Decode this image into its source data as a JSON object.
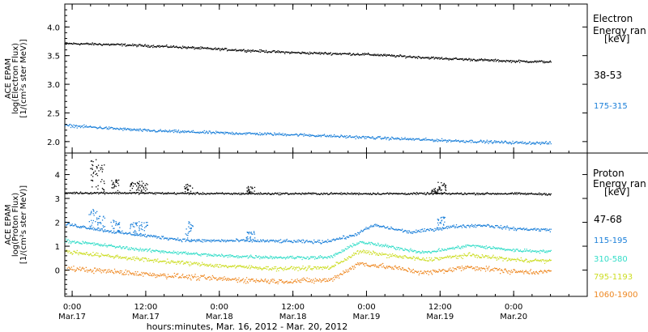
{
  "chart_data": [
    {
      "type": "scatter",
      "panel": "electron",
      "ylabel_lines": [
        "ACE EPAM",
        "log(Electron Flux)",
        "[1/(cm²s ster MeV)]"
      ],
      "ylim": [
        1.8,
        4.4
      ],
      "yticks": [
        2.0,
        2.5,
        3.0,
        3.5,
        4.0
      ],
      "ytick_labels": [
        "2.0",
        "2.5",
        "3.0",
        "3.5",
        "4.0"
      ],
      "legend_title_lines": [
        "Electron",
        "Energy ran",
        "[keV]"
      ],
      "series": [
        {
          "name": "38-53",
          "color": "#000000",
          "trend": [
            [
              -0.05,
              3.72
            ],
            [
              0.3,
              3.7
            ],
            [
              0.7,
              3.66
            ],
            [
              1.0,
              3.62
            ],
            [
              1.5,
              3.56
            ],
            [
              2.0,
              3.53
            ],
            [
              2.5,
              3.46
            ],
            [
              3.0,
              3.41
            ],
            [
              3.25,
              3.4
            ]
          ],
          "noise": 0.015,
          "spikes": []
        },
        {
          "name": "175-315",
          "color": "#1a7fd9",
          "trend": [
            [
              -0.05,
              2.29
            ],
            [
              0.5,
              2.2
            ],
            [
              1.0,
              2.16
            ],
            [
              1.5,
              2.13
            ],
            [
              2.0,
              2.08
            ],
            [
              2.5,
              2.03
            ],
            [
              3.0,
              1.99
            ],
            [
              3.25,
              1.98
            ]
          ],
          "noise": 0.018,
          "spikes": []
        }
      ]
    },
    {
      "type": "scatter",
      "panel": "proton",
      "ylabel_lines": [
        "ACE EPAM",
        "log(Proton Flux)",
        "[1/(cm²s ster MeV)]"
      ],
      "ylim": [
        -1.1,
        4.9
      ],
      "yticks": [
        0,
        1,
        2,
        3,
        4
      ],
      "ytick_labels": [
        "0",
        "1",
        "2",
        "3",
        "4"
      ],
      "legend_title_lines": [
        "Proton",
        "Energy ran",
        "[keV]"
      ],
      "series": [
        {
          "name": "47-68",
          "color": "#000000",
          "trend": [
            [
              -0.05,
              3.25
            ],
            [
              0.3,
              3.25
            ],
            [
              1.0,
              3.22
            ],
            [
              2.0,
              3.22
            ],
            [
              3.0,
              3.22
            ],
            [
              3.25,
              3.2
            ]
          ],
          "noise": 0.03,
          "spikes": [
            [
              0.13,
              1.4
            ],
            [
              0.18,
              1.2
            ],
            [
              0.28,
              0.6
            ],
            [
              0.41,
              0.5
            ],
            [
              0.47,
              0.5
            ],
            [
              0.78,
              0.4
            ],
            [
              1.2,
              0.3
            ],
            [
              2.46,
              0.25
            ],
            [
              2.5,
              0.5
            ]
          ]
        },
        {
          "name": "115-195",
          "color": "#1a7fd9",
          "trend": [
            [
              -0.05,
              1.95
            ],
            [
              0.3,
              1.6
            ],
            [
              0.8,
              1.25
            ],
            [
              1.2,
              1.25
            ],
            [
              1.7,
              1.2
            ],
            [
              1.9,
              1.45
            ],
            [
              2.05,
              1.9
            ],
            [
              2.3,
              1.6
            ],
            [
              2.6,
              1.85
            ],
            [
              2.8,
              1.9
            ],
            [
              3.0,
              1.75
            ],
            [
              3.25,
              1.7
            ]
          ],
          "noise": 0.05,
          "spikes": [
            [
              0.13,
              0.8
            ],
            [
              0.18,
              0.6
            ],
            [
              0.28,
              0.5
            ],
            [
              0.41,
              0.5
            ],
            [
              0.47,
              0.6
            ],
            [
              0.78,
              0.8
            ],
            [
              1.2,
              0.4
            ],
            [
              2.5,
              0.5
            ]
          ]
        },
        {
          "name": "310-580",
          "color": "#33ddc8",
          "trend": [
            [
              -0.05,
              1.25
            ],
            [
              0.5,
              0.85
            ],
            [
              1.0,
              0.62
            ],
            [
              1.4,
              0.55
            ],
            [
              1.75,
              0.55
            ],
            [
              1.95,
              1.2
            ],
            [
              2.2,
              0.95
            ],
            [
              2.4,
              0.75
            ],
            [
              2.7,
              1.05
            ],
            [
              3.0,
              0.85
            ],
            [
              3.25,
              0.8
            ]
          ],
          "noise": 0.05,
          "spikes": []
        },
        {
          "name": "795-1193",
          "color": "#ccdd22",
          "trend": [
            [
              -0.05,
              0.8
            ],
            [
              0.5,
              0.45
            ],
            [
              1.0,
              0.2
            ],
            [
              1.4,
              0.08
            ],
            [
              1.75,
              0.12
            ],
            [
              1.95,
              0.8
            ],
            [
              2.2,
              0.6
            ],
            [
              2.4,
              0.45
            ],
            [
              2.7,
              0.65
            ],
            [
              3.0,
              0.45
            ],
            [
              3.25,
              0.4
            ]
          ],
          "noise": 0.06,
          "spikes": []
        },
        {
          "name": "1060-1900",
          "color": "#ee8822",
          "trend": [
            [
              -0.05,
              0.1
            ],
            [
              0.5,
              -0.15
            ],
            [
              1.0,
              -0.35
            ],
            [
              1.4,
              -0.45
            ],
            [
              1.75,
              -0.4
            ],
            [
              1.95,
              0.3
            ],
            [
              2.2,
              0.1
            ],
            [
              2.4,
              -0.1
            ],
            [
              2.7,
              0.15
            ],
            [
              3.0,
              -0.05
            ],
            [
              3.25,
              -0.05
            ]
          ],
          "noise": 0.08,
          "spikes": []
        }
      ]
    }
  ],
  "x_axis": {
    "tick_days": [
      0,
      0.5,
      1,
      1.5,
      2,
      2.5,
      3
    ],
    "tick_labels": [
      [
        "0:00",
        "Mar.17"
      ],
      [
        "12:00",
        "Mar.17"
      ],
      [
        "0:00",
        "Mar.18"
      ],
      [
        "12:00",
        "Mar.18"
      ],
      [
        "0:00",
        "Mar.19"
      ],
      [
        "12:00",
        "Mar.19"
      ],
      [
        "0:00",
        "Mar.20"
      ]
    ],
    "range_days": [
      -0.05,
      3.5
    ],
    "label": "hours:minutes, Mar. 16, 2012 - Mar. 20, 2012"
  }
}
